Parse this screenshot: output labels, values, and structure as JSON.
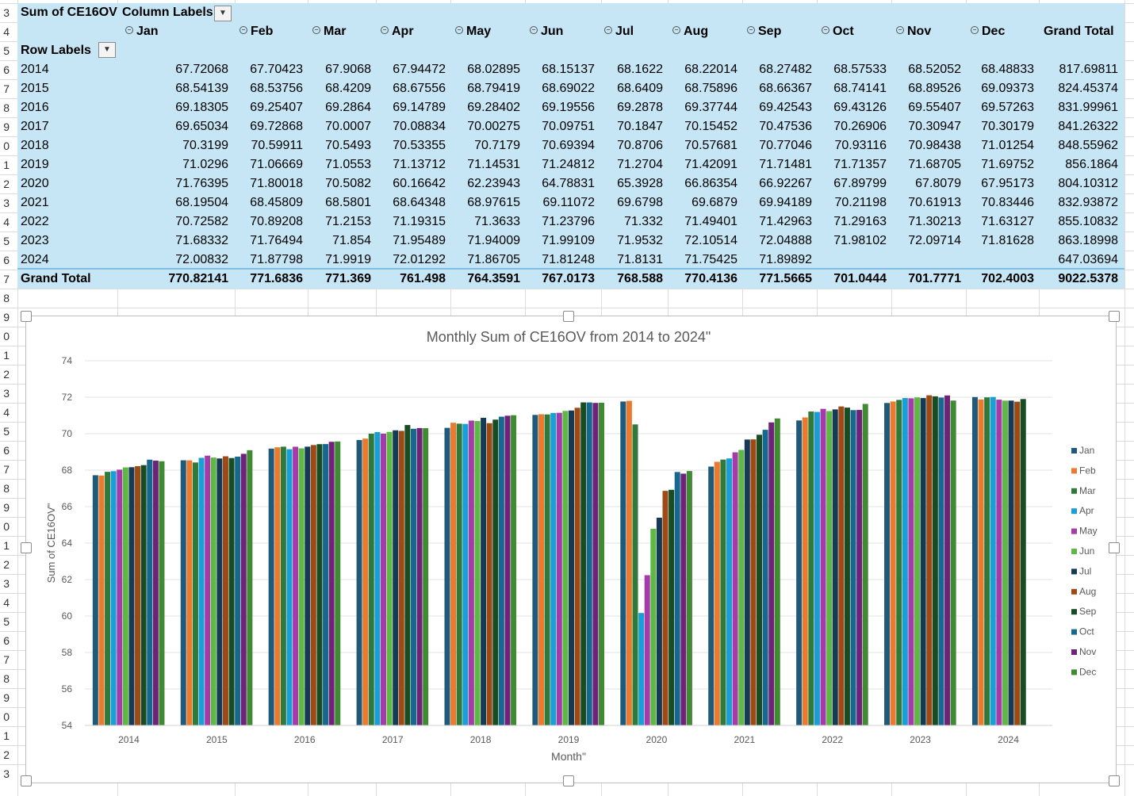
{
  "pivot": {
    "corner_label": "Sum of CE16OV",
    "column_labels": "Column Labels",
    "row_labels": "Row Labels",
    "months": [
      "Jan",
      "Feb",
      "Mar",
      "Apr",
      "May",
      "Jun",
      "Jul",
      "Aug",
      "Sep",
      "Oct",
      "Nov",
      "Dec"
    ],
    "grand_total_label": "Grand Total",
    "rows": [
      {
        "label": "2014",
        "values": [
          "67.72068",
          "67.70423",
          "67.9068",
          "67.94472",
          "68.02895",
          "68.15137",
          "68.1622",
          "68.22014",
          "68.27482",
          "68.57533",
          "68.52052",
          "68.48833"
        ],
        "total": "817.69811"
      },
      {
        "label": "2015",
        "values": [
          "68.54139",
          "68.53756",
          "68.4209",
          "68.67556",
          "68.79419",
          "68.69022",
          "68.6409",
          "68.75896",
          "68.66367",
          "68.74141",
          "68.89526",
          "69.09373"
        ],
        "total": "824.45374"
      },
      {
        "label": "2016",
        "values": [
          "69.18305",
          "69.25407",
          "69.2864",
          "69.14789",
          "69.28402",
          "69.19556",
          "69.2878",
          "69.37744",
          "69.42543",
          "69.43126",
          "69.55407",
          "69.57263"
        ],
        "total": "831.99961"
      },
      {
        "label": "2017",
        "values": [
          "69.65034",
          "69.72868",
          "70.0007",
          "70.08834",
          "70.00275",
          "70.09751",
          "70.1847",
          "70.15452",
          "70.47536",
          "70.26906",
          "70.30947",
          "70.30179"
        ],
        "total": "841.26322"
      },
      {
        "label": "2018",
        "values": [
          "70.3199",
          "70.59911",
          "70.5493",
          "70.53355",
          "70.7179",
          "70.69394",
          "70.8706",
          "70.57681",
          "70.77046",
          "70.93116",
          "70.98438",
          "71.01254"
        ],
        "total": "848.55962"
      },
      {
        "label": "2019",
        "values": [
          "71.0296",
          "71.06669",
          "71.0553",
          "71.13712",
          "71.14531",
          "71.24812",
          "71.2704",
          "71.42091",
          "71.71481",
          "71.71357",
          "71.68705",
          "71.69752"
        ],
        "total": "856.1864"
      },
      {
        "label": "2020",
        "values": [
          "71.76395",
          "71.80018",
          "70.5082",
          "60.16642",
          "62.23943",
          "64.78831",
          "65.3928",
          "66.86354",
          "66.92267",
          "67.89799",
          "67.8079",
          "67.95173"
        ],
        "total": "804.10312"
      },
      {
        "label": "2021",
        "values": [
          "68.19504",
          "68.45809",
          "68.5801",
          "68.64348",
          "68.97615",
          "69.11072",
          "69.6798",
          "69.6879",
          "69.94189",
          "70.21198",
          "70.61913",
          "70.83446"
        ],
        "total": "832.93872"
      },
      {
        "label": "2022",
        "values": [
          "70.72582",
          "70.89208",
          "71.2153",
          "71.19315",
          "71.3633",
          "71.23796",
          "71.332",
          "71.49401",
          "71.42963",
          "71.29163",
          "71.30213",
          "71.63127"
        ],
        "total": "855.10832"
      },
      {
        "label": "2023",
        "values": [
          "71.68332",
          "71.76494",
          "71.854",
          "71.95489",
          "71.94009",
          "71.99109",
          "71.9532",
          "72.10514",
          "72.04888",
          "71.98102",
          "72.09714",
          "71.81628"
        ],
        "total": "863.18998"
      },
      {
        "label": "2024",
        "values": [
          "72.00832",
          "71.87798",
          "71.9919",
          "72.01292",
          "71.86705",
          "71.81248",
          "71.8131",
          "71.75425",
          "71.89892",
          "",
          "",
          ""
        ],
        "total": "647.03694"
      }
    ],
    "grand_total_row": {
      "label": "Grand Total",
      "values": [
        "770.82141",
        "771.6836",
        "771.369",
        "761.498",
        "764.3591",
        "767.0173",
        "768.588",
        "770.4136",
        "771.5665",
        "701.0444",
        "701.7771",
        "702.4003"
      ],
      "total": "9022.5378"
    }
  },
  "row_numbers": [
    "3",
    "4",
    "5",
    "6",
    "7",
    "8",
    "9",
    "0",
    "1",
    "2",
    "3",
    "4",
    "5",
    "6",
    "7",
    "8",
    "9",
    "0",
    "1",
    "2",
    "3",
    "4",
    "5",
    "6",
    "7",
    "8",
    "9",
    "0",
    "1",
    "2",
    "3",
    "4",
    "5",
    "6",
    "7",
    "8",
    "9",
    "0",
    "1",
    "2",
    "3"
  ],
  "chart_data": {
    "type": "bar",
    "title": "Monthly Sum of CE16OV from 2014 to 2024\"",
    "xlabel": "Month\"",
    "ylabel": "Sum of CE16OV\"",
    "ylim": [
      54,
      74
    ],
    "yticks": [
      "54",
      "56",
      "58",
      "60",
      "62",
      "64",
      "66",
      "68",
      "70",
      "72",
      "74"
    ],
    "grid": true,
    "legend": "right",
    "categories": [
      "2014",
      "2015",
      "2016",
      "2017",
      "2018",
      "2019",
      "2020",
      "2021",
      "2022",
      "2023",
      "2024"
    ],
    "series": [
      {
        "name": "Jan",
        "color": "#1f5a7a",
        "values": [
          67.72068,
          68.54139,
          69.18305,
          69.65034,
          70.3199,
          71.0296,
          71.76395,
          68.19504,
          70.72582,
          71.68332,
          72.00832
        ]
      },
      {
        "name": "Feb",
        "color": "#e97a2e",
        "values": [
          67.70423,
          68.53756,
          69.25407,
          69.72868,
          70.59911,
          71.06669,
          71.80018,
          68.45809,
          70.89208,
          71.76494,
          71.87798
        ]
      },
      {
        "name": "Mar",
        "color": "#2f7a3a",
        "values": [
          67.9068,
          68.4209,
          69.2864,
          70.0007,
          70.5493,
          71.0553,
          70.5082,
          68.5801,
          71.2153,
          71.854,
          71.9919
        ]
      },
      {
        "name": "Apr",
        "color": "#1a9ed6",
        "values": [
          67.94472,
          68.67556,
          69.14789,
          70.08834,
          70.53355,
          71.13712,
          60.16642,
          68.64348,
          71.19315,
          71.95489,
          72.01292
        ]
      },
      {
        "name": "May",
        "color": "#a43ba8",
        "values": [
          68.02895,
          68.79419,
          69.28402,
          70.00275,
          70.7179,
          71.14531,
          62.23943,
          68.97615,
          71.3633,
          71.94009,
          71.86705
        ]
      },
      {
        "name": "Jun",
        "color": "#5fb846",
        "values": [
          68.15137,
          68.69022,
          69.19556,
          70.09751,
          70.69394,
          71.24812,
          64.78831,
          69.11072,
          71.23796,
          71.99109,
          71.81248
        ]
      },
      {
        "name": "Jul",
        "color": "#153a55",
        "values": [
          68.1622,
          68.6409,
          69.2878,
          70.1847,
          70.8706,
          71.2704,
          65.3928,
          69.6798,
          71.332,
          71.9532,
          71.8131
        ]
      },
      {
        "name": "Aug",
        "color": "#9e4a17",
        "values": [
          68.22014,
          68.75896,
          69.37744,
          70.15452,
          70.57681,
          71.42091,
          66.86354,
          69.6879,
          71.49401,
          72.10514,
          71.75425
        ]
      },
      {
        "name": "Sep",
        "color": "#184d24",
        "values": [
          68.27482,
          68.66367,
          69.42543,
          70.47536,
          70.77046,
          71.71481,
          66.92267,
          69.94189,
          71.42963,
          72.04888,
          71.89892
        ]
      },
      {
        "name": "Oct",
        "color": "#16688f",
        "values": [
          68.57533,
          68.74141,
          69.43126,
          70.26906,
          70.93116,
          71.71357,
          67.89799,
          70.21198,
          71.29163,
          71.98102,
          null
        ]
      },
      {
        "name": "Nov",
        "color": "#6e2278",
        "values": [
          68.52052,
          68.89526,
          69.55407,
          70.30947,
          70.98438,
          71.68705,
          67.8079,
          70.61913,
          71.30213,
          72.09714,
          null
        ]
      },
      {
        "name": "Dec",
        "color": "#3f8a33",
        "values": [
          68.48833,
          69.09373,
          69.57263,
          70.30179,
          71.01254,
          71.69752,
          67.95173,
          70.83446,
          71.63127,
          71.81628,
          null
        ]
      }
    ]
  }
}
